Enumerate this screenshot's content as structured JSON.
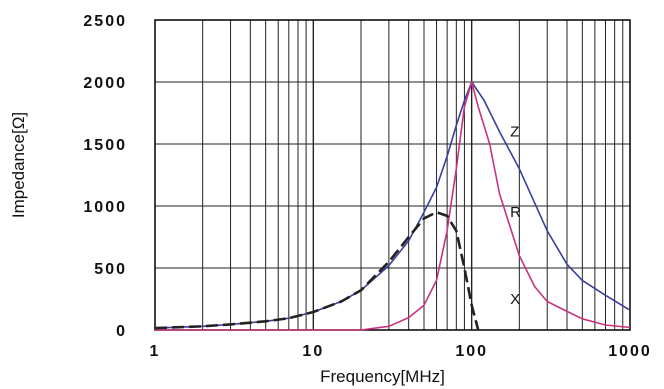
{
  "chart_data": {
    "type": "line",
    "xlabel": "Frequency[MHz]",
    "ylabel": "Impedance[Ω]",
    "x_scale": "log",
    "xlim": [
      1,
      1000
    ],
    "ylim": [
      0,
      2500
    ],
    "grid": true,
    "x_tick_labels": [
      "1",
      "10",
      "100",
      "1000"
    ],
    "y_tick_labels": [
      "0",
      "500",
      "1000",
      "1500",
      "2000",
      "2500"
    ],
    "series": [
      {
        "name": "Z",
        "color": "#3a3f9e",
        "style": "solid",
        "points": [
          [
            1,
            15
          ],
          [
            2,
            30
          ],
          [
            3,
            45
          ],
          [
            5,
            70
          ],
          [
            7,
            95
          ],
          [
            10,
            145
          ],
          [
            15,
            230
          ],
          [
            20,
            320
          ],
          [
            30,
            520
          ],
          [
            40,
            720
          ],
          [
            50,
            950
          ],
          [
            60,
            1150
          ],
          [
            70,
            1400
          ],
          [
            80,
            1650
          ],
          [
            90,
            1850
          ],
          [
            100,
            2000
          ],
          [
            120,
            1850
          ],
          [
            150,
            1600
          ],
          [
            200,
            1300
          ],
          [
            300,
            800
          ],
          [
            400,
            530
          ],
          [
            500,
            400
          ],
          [
            700,
            280
          ],
          [
            1000,
            160
          ]
        ]
      },
      {
        "name": "R",
        "color": "#c8337e",
        "style": "solid",
        "points": [
          [
            1,
            0
          ],
          [
            10,
            0
          ],
          [
            20,
            0
          ],
          [
            30,
            30
          ],
          [
            40,
            100
          ],
          [
            50,
            200
          ],
          [
            60,
            400
          ],
          [
            70,
            800
          ],
          [
            80,
            1300
          ],
          [
            90,
            1800
          ],
          [
            100,
            2000
          ],
          [
            110,
            1800
          ],
          [
            130,
            1500
          ],
          [
            150,
            1100
          ],
          [
            200,
            600
          ],
          [
            250,
            350
          ],
          [
            300,
            230
          ],
          [
            400,
            150
          ],
          [
            500,
            90
          ],
          [
            700,
            40
          ],
          [
            1000,
            20
          ]
        ]
      },
      {
        "name": "X",
        "color": "#222222",
        "style": "dashed",
        "points": [
          [
            1,
            15
          ],
          [
            2,
            30
          ],
          [
            3,
            45
          ],
          [
            5,
            70
          ],
          [
            7,
            95
          ],
          [
            10,
            145
          ],
          [
            15,
            230
          ],
          [
            20,
            320
          ],
          [
            30,
            550
          ],
          [
            40,
            750
          ],
          [
            50,
            900
          ],
          [
            60,
            950
          ],
          [
            70,
            920
          ],
          [
            80,
            800
          ],
          [
            90,
            500
          ],
          [
            100,
            200
          ],
          [
            110,
            0
          ]
        ]
      }
    ]
  }
}
